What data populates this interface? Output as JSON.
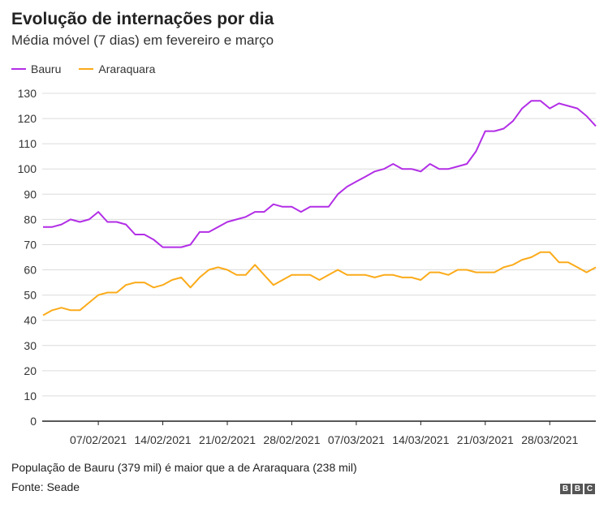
{
  "title": "Evolução de internações por dia",
  "subtitle": "Média móvel (7 dias) em fevereiro e março",
  "note": "População de Bauru (379 mil) é maior que a de Araraquara (238 mil)",
  "source": "Fonte: Seade",
  "logo": "BBC",
  "chart_data": {
    "type": "line",
    "title": "Evolução de internações por dia",
    "subtitle": "Média móvel (7 dias) em fevereiro e março",
    "xlabel": "",
    "ylabel": "",
    "ylim": [
      0,
      130
    ],
    "yticks": [
      0,
      10,
      20,
      30,
      40,
      50,
      60,
      70,
      80,
      90,
      100,
      110,
      120,
      130
    ],
    "xticks": [
      "07/02/2021",
      "14/02/2021",
      "21/02/2021",
      "28/02/2021",
      "07/03/2021",
      "14/03/2021",
      "21/03/2021",
      "28/03/2021"
    ],
    "grid": true,
    "legend": "top-left",
    "x": [
      "01/02/2021",
      "02/02/2021",
      "03/02/2021",
      "04/02/2021",
      "05/02/2021",
      "06/02/2021",
      "07/02/2021",
      "08/02/2021",
      "09/02/2021",
      "10/02/2021",
      "11/02/2021",
      "12/02/2021",
      "13/02/2021",
      "14/02/2021",
      "15/02/2021",
      "16/02/2021",
      "17/02/2021",
      "18/02/2021",
      "19/02/2021",
      "20/02/2021",
      "21/02/2021",
      "22/02/2021",
      "23/02/2021",
      "24/02/2021",
      "25/02/2021",
      "26/02/2021",
      "27/02/2021",
      "28/02/2021",
      "01/03/2021",
      "02/03/2021",
      "03/03/2021",
      "04/03/2021",
      "05/03/2021",
      "06/03/2021",
      "07/03/2021",
      "08/03/2021",
      "09/03/2021",
      "10/03/2021",
      "11/03/2021",
      "12/03/2021",
      "13/03/2021",
      "14/03/2021",
      "15/03/2021",
      "16/03/2021",
      "17/03/2021",
      "18/03/2021",
      "19/03/2021",
      "20/03/2021",
      "21/03/2021",
      "22/03/2021",
      "23/03/2021",
      "24/03/2021",
      "25/03/2021",
      "26/03/2021",
      "27/03/2021",
      "28/03/2021",
      "29/03/2021",
      "30/03/2021",
      "31/03/2021",
      "01/04/2021",
      "02/04/2021"
    ],
    "series": [
      {
        "name": "Bauru",
        "color": "#b22ee6",
        "values": [
          77,
          77,
          78,
          80,
          79,
          80,
          83,
          79,
          79,
          78,
          74,
          74,
          72,
          69,
          69,
          69,
          70,
          75,
          75,
          77,
          79,
          80,
          81,
          83,
          83,
          86,
          85,
          85,
          83,
          85,
          85,
          85,
          90,
          93,
          95,
          97,
          99,
          100,
          102,
          100,
          100,
          99,
          102,
          100,
          100,
          101,
          102,
          107,
          115,
          115,
          116,
          119,
          124,
          127,
          127,
          124,
          126,
          125,
          124,
          121,
          117
        ]
      },
      {
        "name": "Araraquara",
        "color": "#fbab1a",
        "values": [
          42,
          44,
          45,
          44,
          44,
          47,
          50,
          51,
          51,
          54,
          55,
          55,
          53,
          54,
          56,
          57,
          53,
          57,
          60,
          61,
          60,
          58,
          58,
          62,
          58,
          54,
          56,
          58,
          58,
          58,
          56,
          58,
          60,
          58,
          58,
          58,
          57,
          58,
          58,
          57,
          57,
          56,
          59,
          59,
          58,
          60,
          60,
          59,
          59,
          59,
          61,
          62,
          64,
          65,
          67,
          67,
          63,
          63,
          61,
          59,
          61
        ]
      }
    ]
  }
}
